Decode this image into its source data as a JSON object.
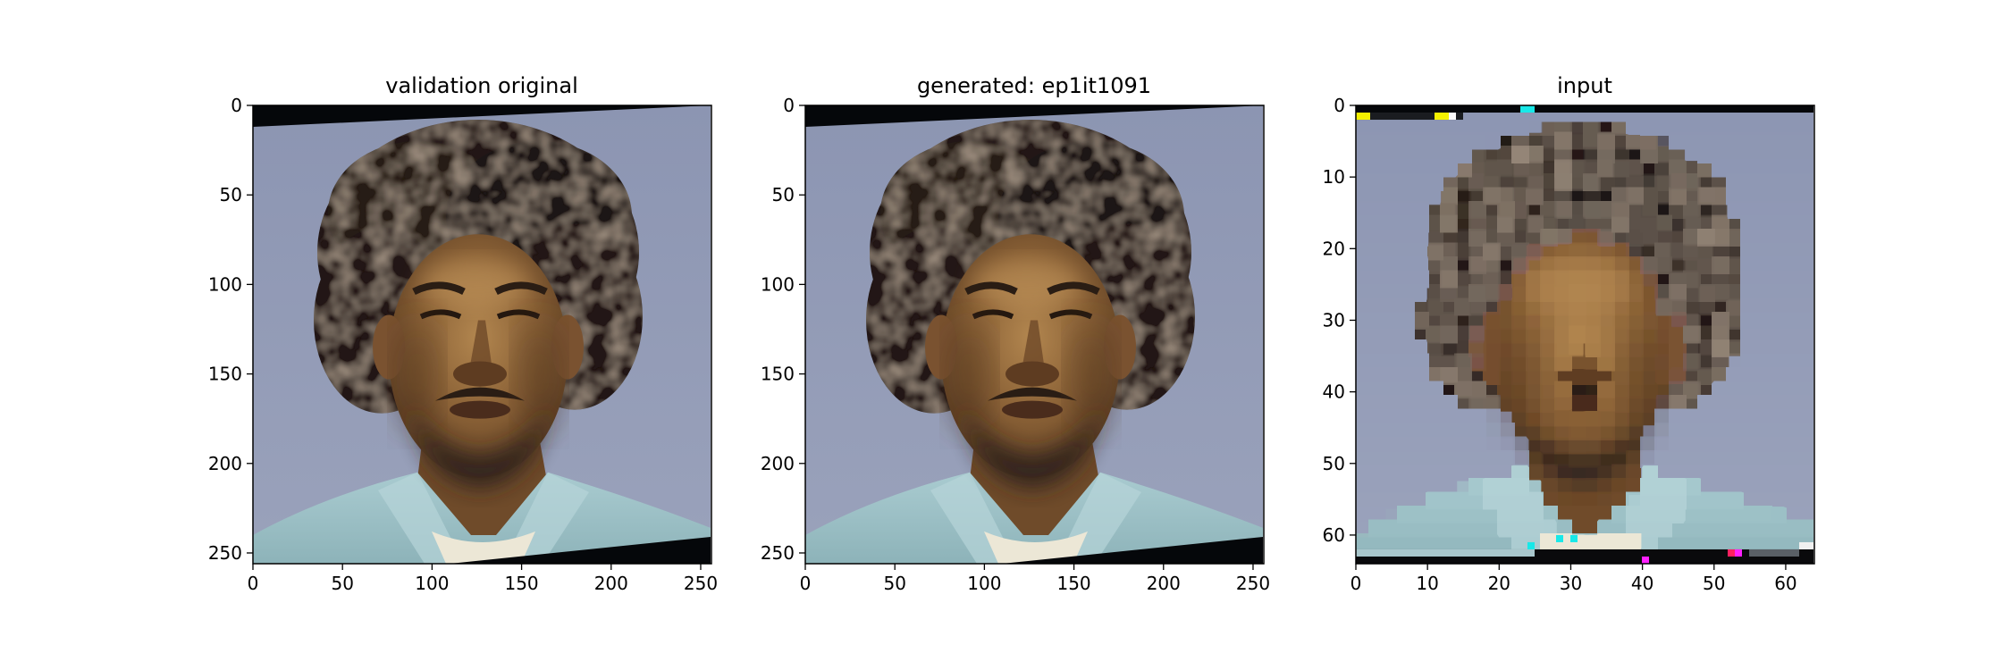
{
  "chart_data": [
    {
      "type": "image",
      "title": "validation original",
      "xlim": [
        0,
        256
      ],
      "ylim": [
        256,
        0
      ],
      "xticks": [
        0,
        50,
        100,
        150,
        200,
        250
      ],
      "yticks": [
        0,
        50,
        100,
        150,
        200,
        250
      ],
      "grid": false,
      "image_content": "mugshot portrait, tilted with black triangular corners (top-left and bottom-right)"
    },
    {
      "type": "image",
      "title": "generated: ep1it1091",
      "xlim": [
        0,
        256
      ],
      "ylim": [
        256,
        0
      ],
      "xticks": [
        0,
        50,
        100,
        150,
        200,
        250
      ],
      "yticks": [
        0,
        50,
        100,
        150,
        200,
        250
      ],
      "grid": false,
      "image_content": "mugshot portrait reconstruction, tilted with black triangular corners"
    },
    {
      "type": "image",
      "title": "input",
      "xlim": [
        0,
        64
      ],
      "ylim": [
        64,
        0
      ],
      "xticks": [
        0,
        10,
        20,
        30,
        40,
        50,
        60
      ],
      "yticks": [
        0,
        10,
        20,
        30,
        40,
        50,
        60
      ],
      "grid": false,
      "image_content": "low-resolution pixelated portrait with colored noise pixels along top and bottom rows"
    }
  ],
  "colors": {
    "background": "#8e97b3",
    "hair": "#211a15",
    "skin": "#8a6136",
    "skin_highlight": "#a77a48",
    "beard": "#2f241c",
    "shirt": "#9ec2c6",
    "undershirt": "#ece7d6",
    "corner": "#05070a"
  }
}
